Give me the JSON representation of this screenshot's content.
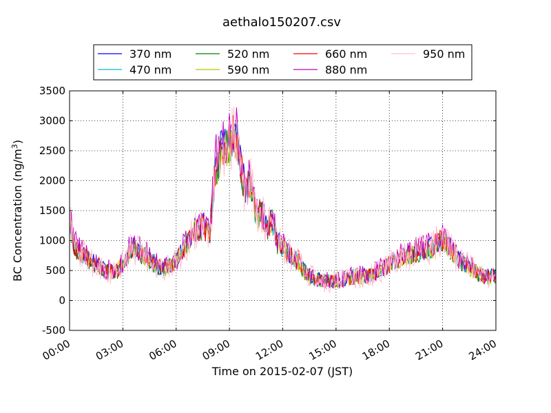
{
  "chart_data": {
    "type": "line",
    "title": "aethalo150207.csv",
    "xlabel": "Time on 2015-02-07 (JST)",
    "ylabel": "BC Concentration (ng/m",
    "ylabel_superscript": "3",
    "ylabel_suffix": ")",
    "xlim": [
      "00:00",
      "24:00"
    ],
    "ylim": [
      -500,
      3500
    ],
    "xticks": [
      "00:00",
      "03:00",
      "06:00",
      "09:00",
      "12:00",
      "15:00",
      "18:00",
      "21:00",
      "24:00"
    ],
    "yticks": [
      -500,
      0,
      500,
      1000,
      1500,
      2000,
      2500,
      3000,
      3500
    ],
    "grid": true,
    "legend_position": "top",
    "series": [
      {
        "name": "370 nm",
        "color": "#0000ff"
      },
      {
        "name": "470 nm",
        "color": "#00bfbf"
      },
      {
        "name": "520 nm",
        "color": "#008000"
      },
      {
        "name": "590 nm",
        "color": "#bfbf00"
      },
      {
        "name": "660 nm",
        "color": "#ff0000"
      },
      {
        "name": "880 nm",
        "color": "#bf00bf"
      },
      {
        "name": "950 nm",
        "color": "#ffc0cb"
      }
    ],
    "profile_hours": [
      0,
      0.25,
      0.5,
      1,
      1.5,
      2,
      2.5,
      3,
      3.5,
      4,
      4.5,
      5,
      5.5,
      6,
      6.5,
      7,
      7.5,
      7.9,
      8.2,
      8.5,
      8.8,
      9.0,
      9.3,
      9.6,
      9.9,
      10.2,
      10.5,
      10.8,
      11.1,
      11.4,
      11.7,
      12,
      12.3,
      12.6,
      12.9,
      13.2,
      13.5,
      14,
      14.5,
      15,
      15.5,
      16,
      16.5,
      17,
      17.5,
      18,
      18.5,
      19,
      19.5,
      20,
      20.5,
      20.8,
      21.2,
      21.6,
      22,
      22.5,
      23,
      23.5,
      24
    ],
    "profile_values": [
      1400,
      900,
      850,
      700,
      600,
      500,
      450,
      600,
      900,
      800,
      700,
      550,
      550,
      650,
      900,
      1150,
      1250,
      1100,
      2200,
      2500,
      2600,
      2650,
      2800,
      2300,
      1800,
      2000,
      1400,
      1500,
      1200,
      1350,
      950,
      900,
      800,
      700,
      650,
      500,
      400,
      350,
      320,
      320,
      350,
      400,
      400,
      420,
      500,
      600,
      700,
      750,
      800,
      850,
      900,
      1000,
      950,
      800,
      650,
      550,
      450,
      400,
      400
    ]
  }
}
